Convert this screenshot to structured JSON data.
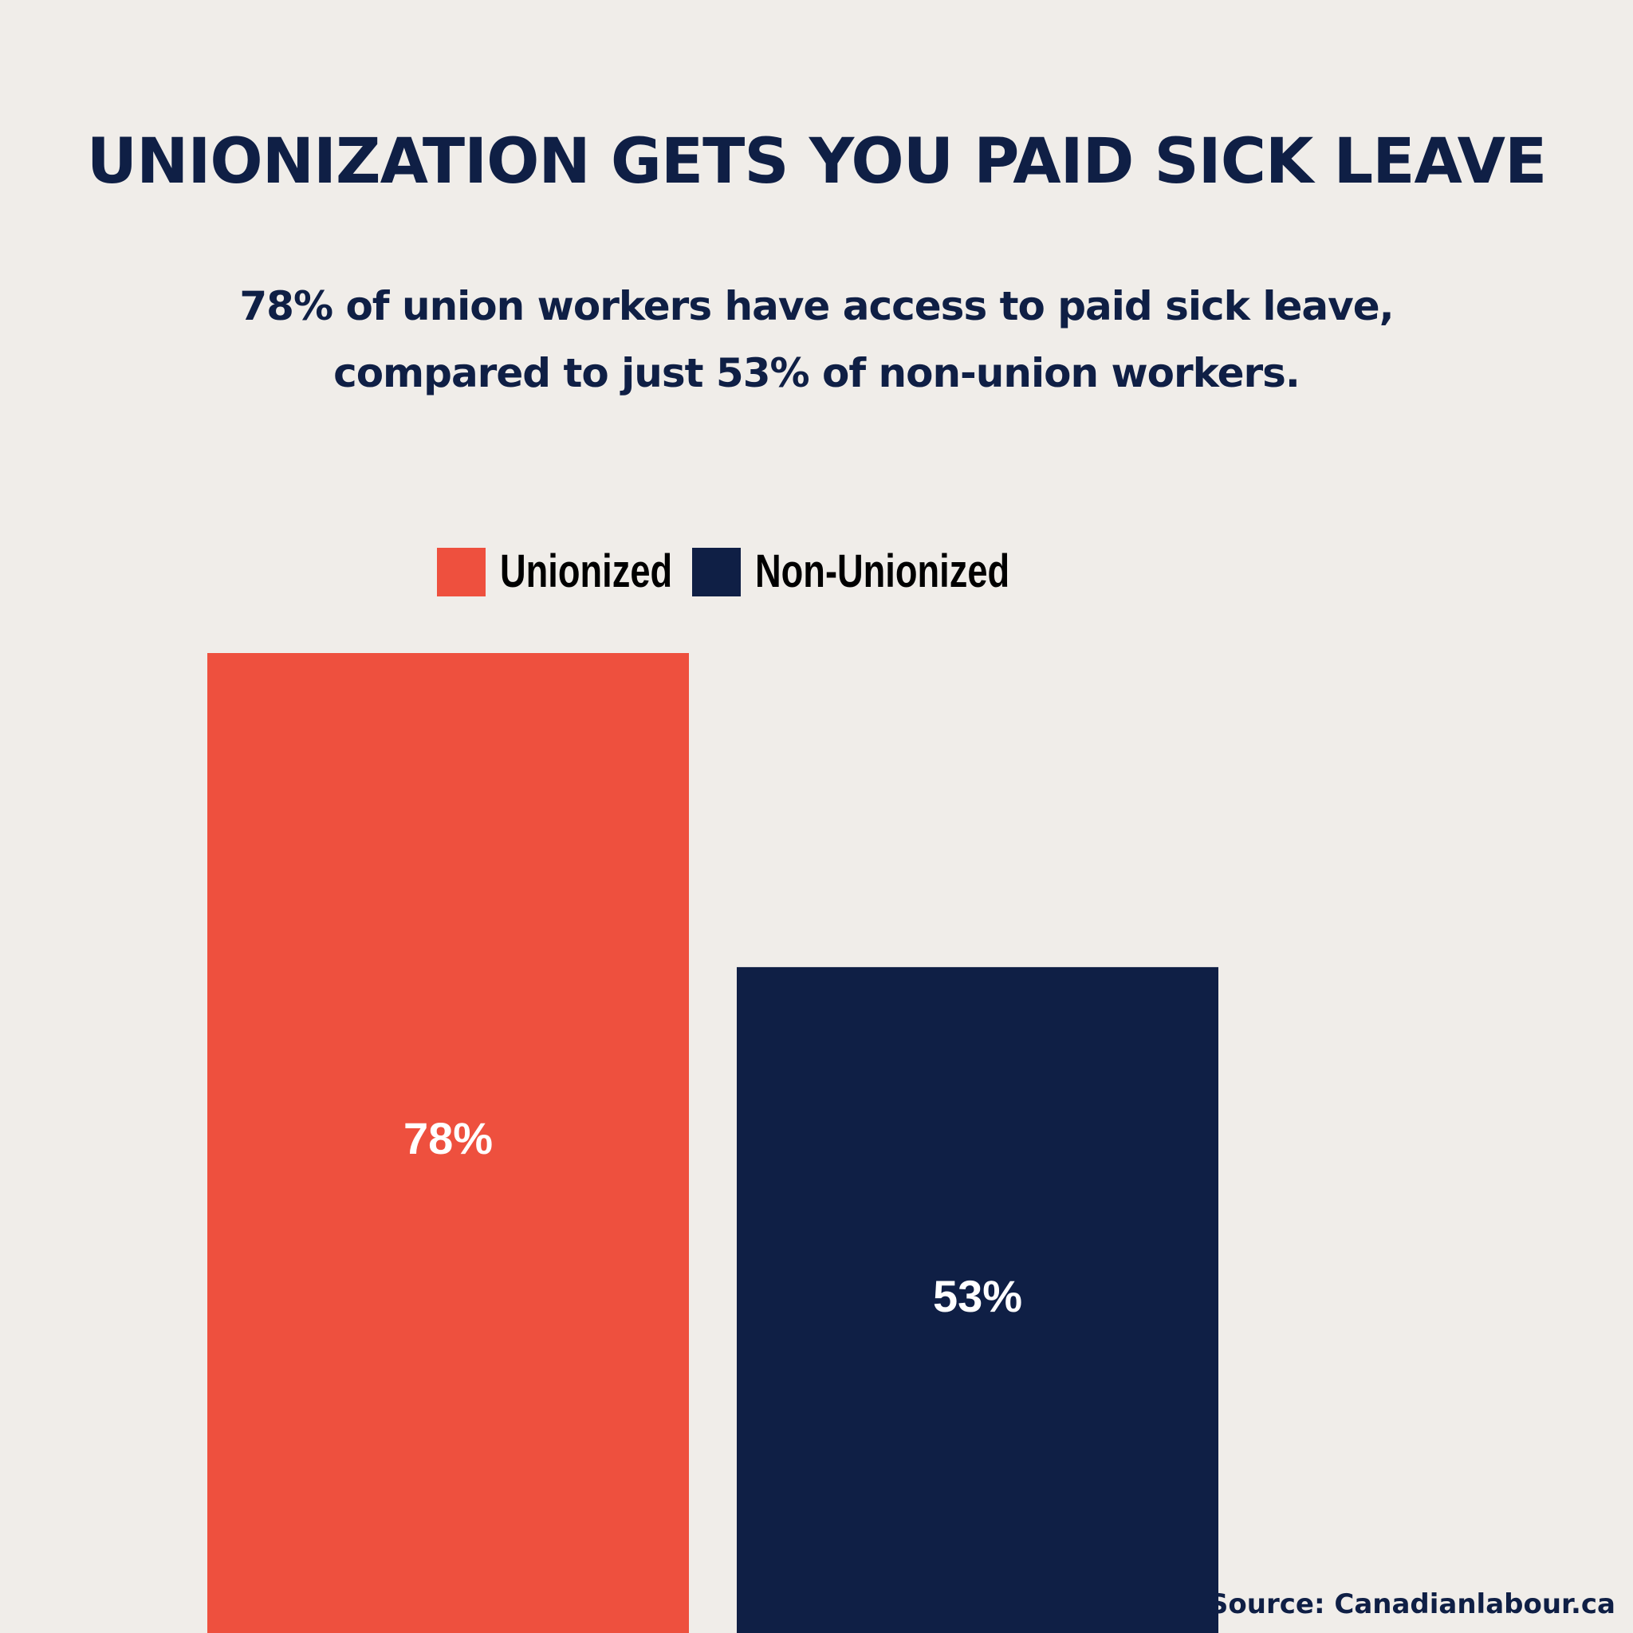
{
  "colors": {
    "background": "#f0ede9",
    "text": "#0f1f45",
    "unionized": "#ee503e",
    "non_unionized": "#0f1f45",
    "bar_label": "#ffffff"
  },
  "chart_data": {
    "type": "bar",
    "title": "UNIONIZATION GETS YOU PAID SICK LEAVE",
    "subtitle_lines": [
      "78% of union workers have access to paid sick leave,",
      "compared to just 53% of non-union workers."
    ],
    "categories": [
      "Unionized",
      "Non-Unionized"
    ],
    "values": [
      78,
      53
    ],
    "value_labels": [
      "78%",
      "53%"
    ],
    "unit": "%",
    "ylim": [
      0,
      100
    ],
    "xlabel": "",
    "ylabel": "",
    "grid": false,
    "axes_visible": false,
    "legend": {
      "position": "top-center",
      "entries": [
        "Unionized",
        "Non-Unionized"
      ]
    },
    "source": "Source: Canadianlabour.ca"
  }
}
